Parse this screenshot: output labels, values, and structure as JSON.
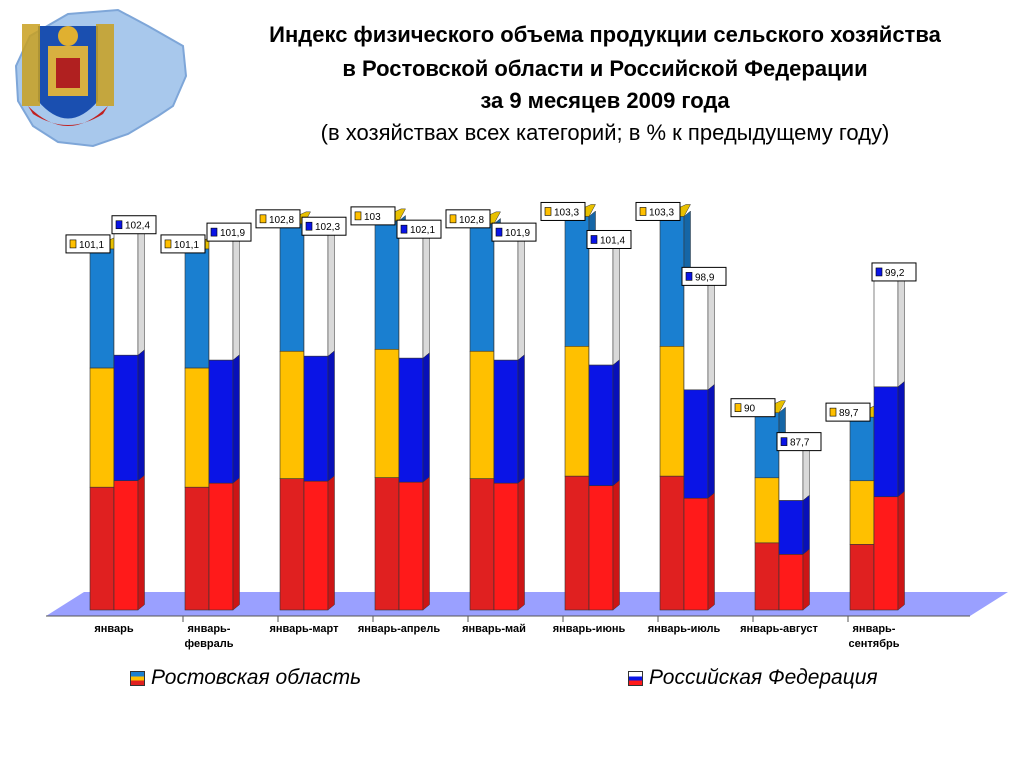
{
  "title": {
    "line1": "Индекс физического объема продукции сельского хозяйства",
    "line2": "в Ростовской области и Российской Федерации",
    "line3": "за 9  месяцев  2009 года",
    "subtitle": "(в хозяйствах всех категорий; в % к предыдущему году)"
  },
  "colors": {
    "ro_flag": [
      "#1a7fd0",
      "#ffc000",
      "#e02020"
    ],
    "rf_flag": [
      "#ffffff",
      "#0a14e6",
      "#ff1a1a"
    ],
    "floor": "#9aa0ff",
    "label_border": "#000000"
  },
  "chart_data": {
    "type": "bar",
    "categories": [
      [
        "январь"
      ],
      [
        "январь-",
        "февраль"
      ],
      [
        "январь-март"
      ],
      [
        "январь-апрель"
      ],
      [
        "январь-май"
      ],
      [
        "январь-июнь"
      ],
      [
        "январь-июль"
      ],
      [
        "январь-август"
      ],
      [
        "январь-",
        "сентябрь"
      ]
    ],
    "series": [
      {
        "name": "Ростовская область",
        "values": [
          101.1,
          101.1,
          102.8,
          103,
          102.8,
          103.3,
          103.3,
          90,
          89.7
        ]
      },
      {
        "name": "Российская Федерация",
        "values": [
          102.4,
          101.9,
          102.3,
          102.1,
          101.9,
          101.4,
          98.9,
          87.7,
          99.2
        ]
      }
    ],
    "value_labels": [
      [
        "101,1",
        "101,1",
        "102,8",
        "103",
        "102,8",
        "103,3",
        "103,3",
        "90",
        "89,7"
      ],
      [
        "102,4",
        "101,9",
        "102,3",
        "102,1",
        "101,9",
        "101,4",
        "98,9",
        "87,7",
        "99,2"
      ]
    ],
    "legend": {
      "position": "bottom"
    },
    "style": "3d"
  },
  "legend": {
    "ro": "Ростовская область",
    "rf": "Российская Федерация"
  }
}
